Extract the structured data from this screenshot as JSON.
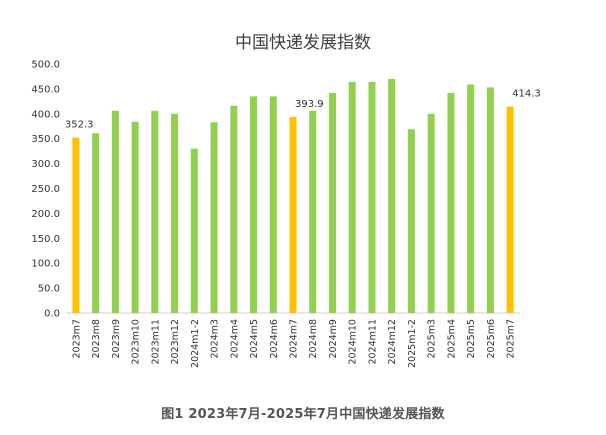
{
  "chart_data": {
    "type": "bar",
    "title": "中国快递发展指数",
    "xlabel": "",
    "ylabel": "",
    "ylim": [
      0,
      500
    ],
    "y_ticks": [
      "0.0",
      "50.0",
      "100.0",
      "150.0",
      "200.0",
      "250.0",
      "300.0",
      "350.0",
      "400.0",
      "450.0",
      "500.0"
    ],
    "grid": false,
    "legend": "none",
    "categories": [
      "2023m7",
      "2023m8",
      "2023m9",
      "2023m10",
      "2023m11",
      "2023m12",
      "2024m1-2",
      "2024m3",
      "2024m4",
      "2024m5",
      "2024m6",
      "2024m7",
      "2024m8",
      "2024m9",
      "2024m10",
      "2024m11",
      "2024m12",
      "2025m1-2",
      "2025m3",
      "2025m4",
      "2025m5",
      "2025m6",
      "2025m7"
    ],
    "values": [
      352.3,
      361,
      406,
      384,
      406,
      400,
      330,
      383,
      416,
      435,
      435,
      393.9,
      406,
      442,
      464,
      464,
      470,
      369,
      400,
      442,
      459,
      453,
      414.3
    ],
    "highlighted": [
      "2023m7",
      "2024m7",
      "2025m7"
    ],
    "data_labels": {
      "2023m7": "352.3",
      "2024m7": "393.9",
      "2025m7": "414.3"
    },
    "colors": {
      "bar": "#92d050",
      "highlight": "#ffc000",
      "axis": "#d0d0d0"
    }
  },
  "caption": "图1 2023年7月-2025年7月中国快递发展指数"
}
